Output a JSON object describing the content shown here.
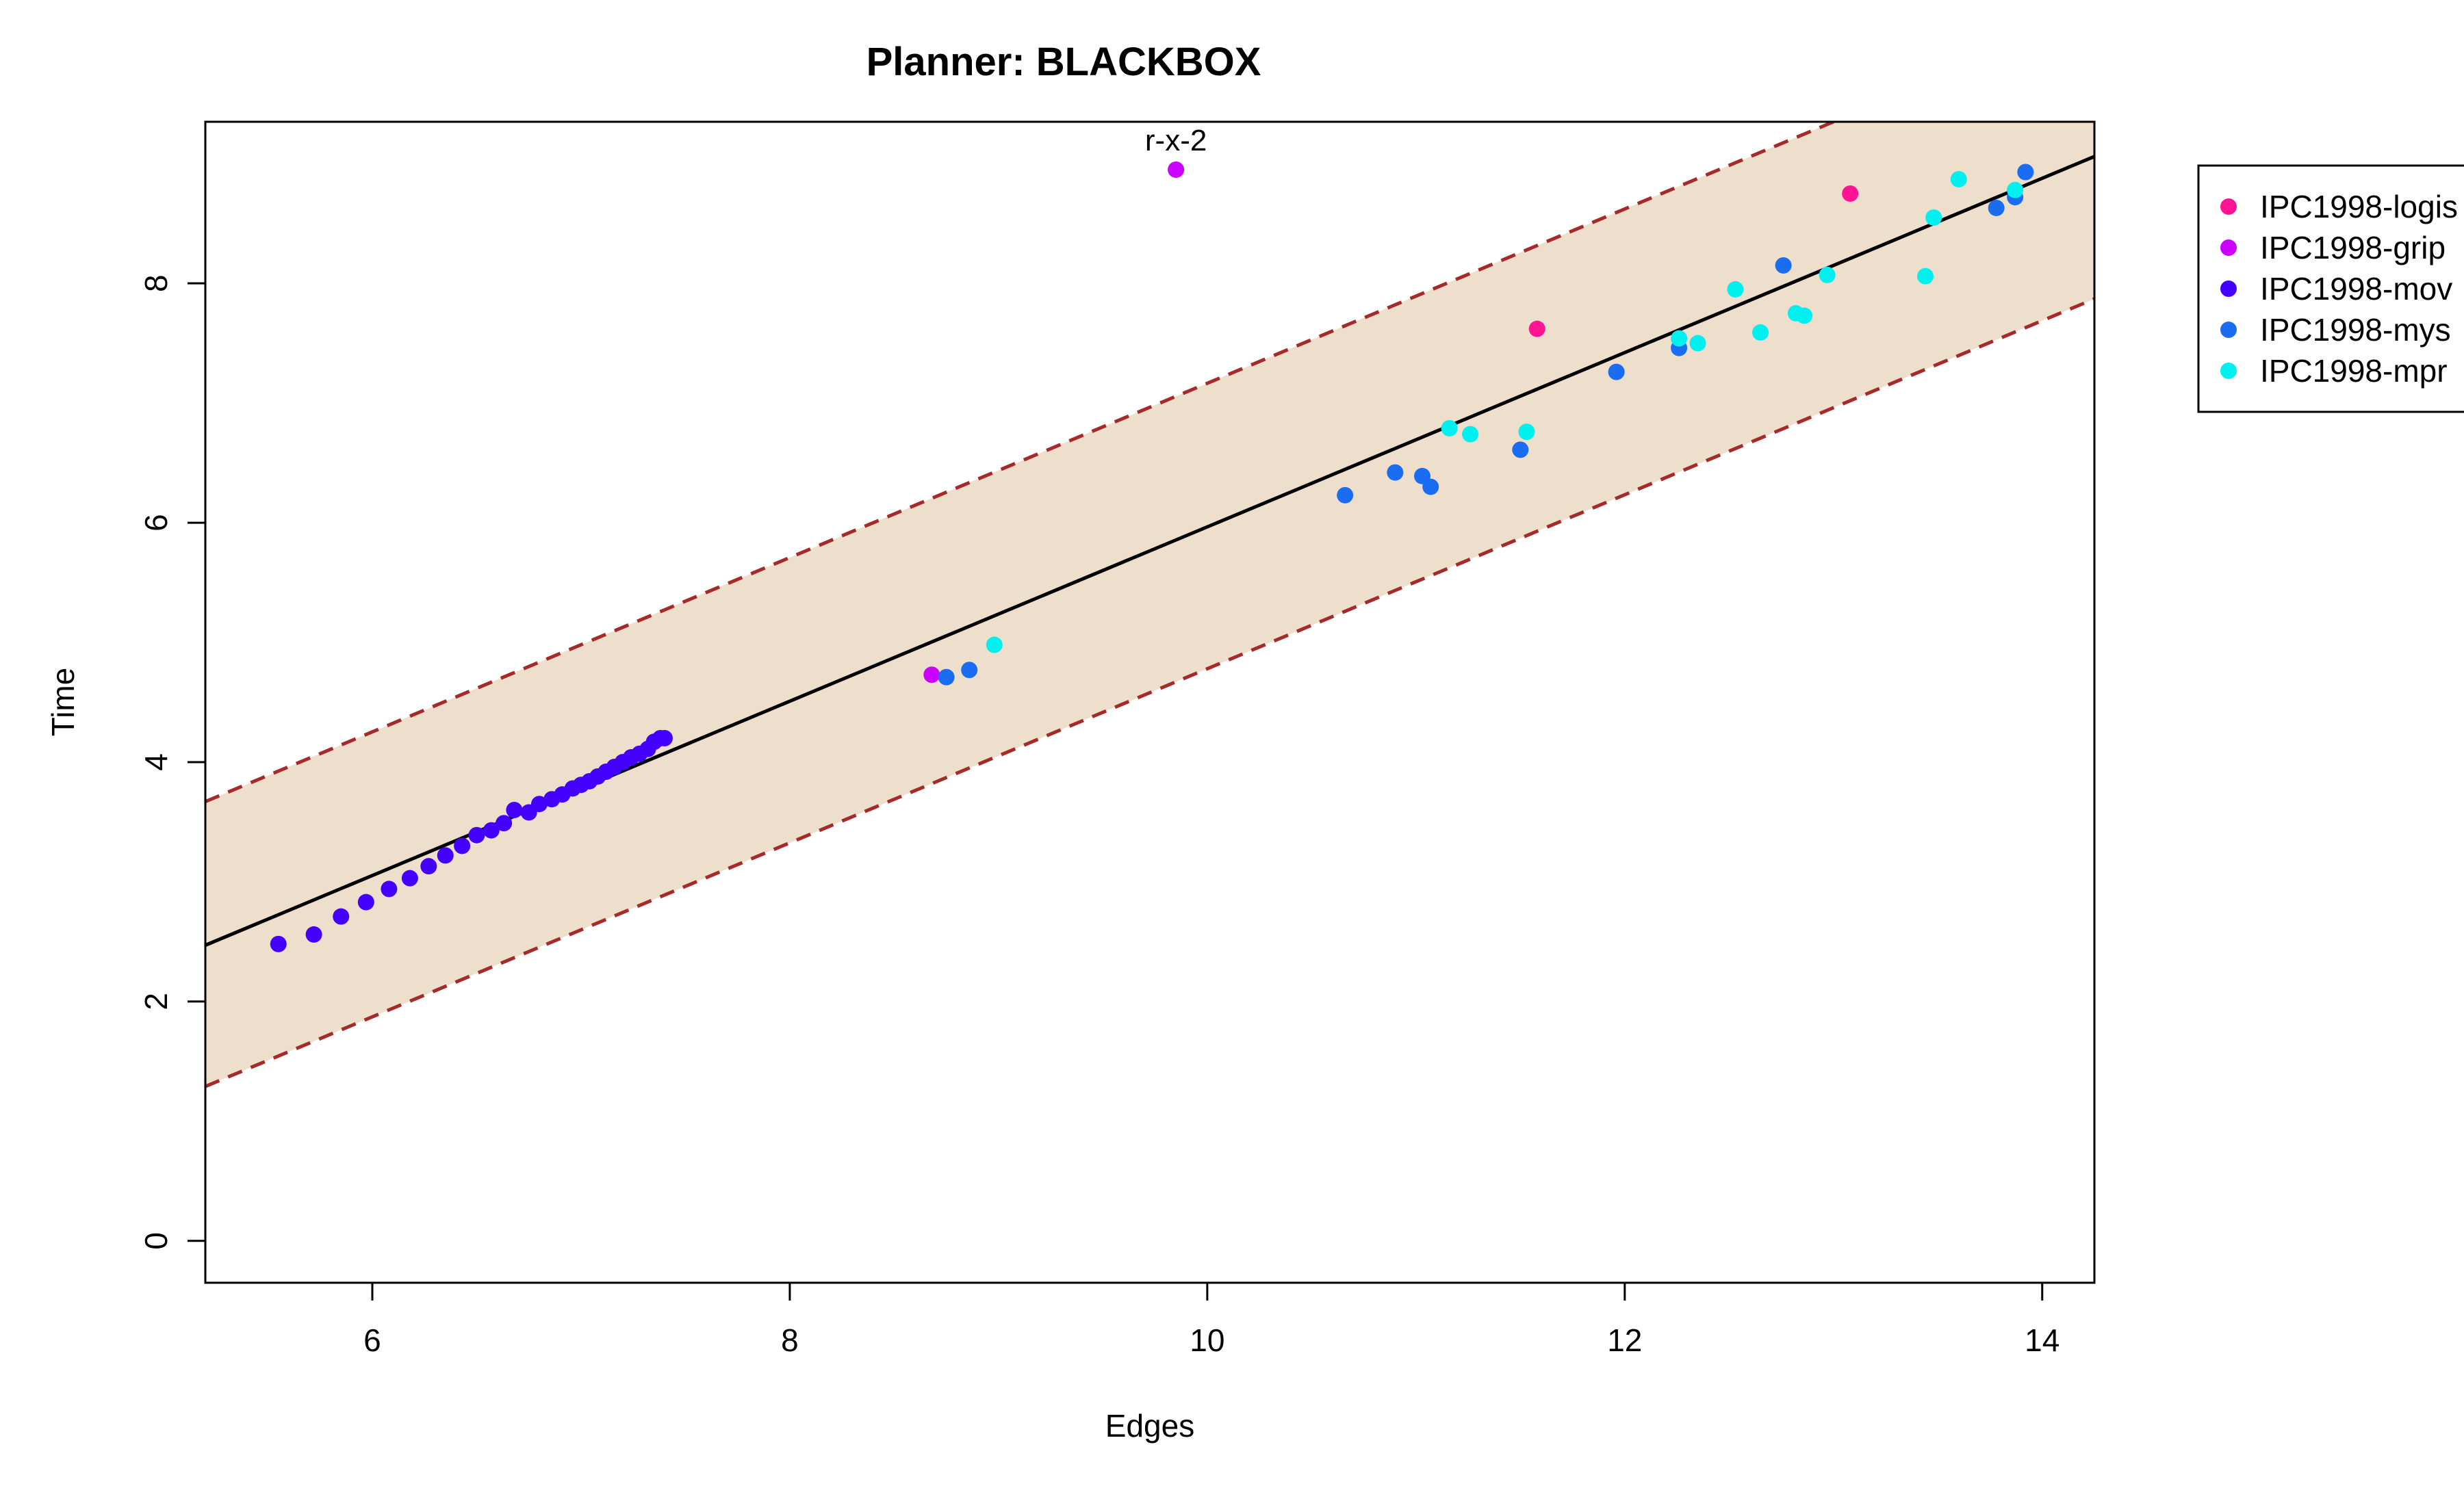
{
  "chart_data": {
    "type": "scatter",
    "title": "Planner: BLACKBOX",
    "xlabel": "Edges",
    "ylabel": "Time",
    "xlim": [
      5.2,
      14.25
    ],
    "ylim": [
      -0.35,
      9.35
    ],
    "x_ticks": [
      6,
      8,
      10,
      12,
      14
    ],
    "y_ticks": [
      0,
      2,
      4,
      6,
      8
    ],
    "grid": false,
    "legend_position": "right, outside plot (clipped)",
    "fit_line": {
      "x": [
        5.2,
        14.25
      ],
      "y": [
        2.47,
        9.06
      ]
    },
    "band_upper": {
      "x": [
        5.2,
        14.25
      ],
      "y": [
        3.67,
        10.26
      ]
    },
    "band_lower": {
      "x": [
        5.2,
        14.25
      ],
      "y": [
        1.29,
        7.87
      ]
    },
    "band_color": "#eedfcc",
    "band_line_color": "#a52a2a",
    "fit_line_color": "#000000",
    "annotations": [
      {
        "text": "r-x-2",
        "x": 9.85,
        "y": 9.19
      }
    ],
    "series": [
      {
        "name": "IPC1998-logis",
        "color": "#ff1493",
        "points": [
          [
            11.58,
            7.62
          ],
          [
            13.08,
            8.75
          ]
        ]
      },
      {
        "name": "IPC1998-grip",
        "color": "#cc00ff",
        "points": [
          [
            9.85,
            8.95
          ],
          [
            8.68,
            4.73
          ]
        ]
      },
      {
        "name": "IPC1998-mov",
        "color": "#4400ff",
        "points": [
          [
            5.55,
            2.48
          ],
          [
            5.72,
            2.56
          ],
          [
            5.85,
            2.71
          ],
          [
            5.97,
            2.83
          ],
          [
            6.08,
            2.94
          ],
          [
            6.18,
            3.03
          ],
          [
            6.27,
            3.13
          ],
          [
            6.35,
            3.22
          ],
          [
            6.43,
            3.3
          ],
          [
            6.5,
            3.39
          ],
          [
            6.57,
            3.43
          ],
          [
            6.63,
            3.49
          ],
          [
            6.68,
            3.6
          ],
          [
            6.75,
            3.58
          ],
          [
            6.8,
            3.65
          ],
          [
            6.86,
            3.69
          ],
          [
            6.91,
            3.73
          ],
          [
            6.96,
            3.78
          ],
          [
            7.0,
            3.81
          ],
          [
            7.04,
            3.84
          ],
          [
            7.08,
            3.88
          ],
          [
            7.12,
            3.92
          ],
          [
            7.16,
            3.96
          ],
          [
            7.2,
            4.0
          ],
          [
            7.24,
            4.04
          ],
          [
            7.28,
            4.07
          ],
          [
            7.32,
            4.11
          ],
          [
            7.35,
            4.17
          ],
          [
            7.38,
            4.2
          ],
          [
            7.4,
            4.2
          ]
        ]
      },
      {
        "name": "IPC1998-mys",
        "color": "#1a6cf0",
        "points": [
          [
            8.75,
            4.71
          ],
          [
            8.86,
            4.77
          ],
          [
            10.66,
            6.23
          ],
          [
            10.9,
            6.42
          ],
          [
            11.03,
            6.39
          ],
          [
            11.07,
            6.3
          ],
          [
            11.5,
            6.61
          ],
          [
            11.96,
            7.26
          ],
          [
            12.26,
            7.46
          ],
          [
            12.76,
            8.15
          ],
          [
            13.78,
            8.63
          ],
          [
            13.87,
            8.72
          ],
          [
            13.92,
            8.93
          ]
        ]
      },
      {
        "name": "IPC1998-mpr",
        "color": "#00f0f0",
        "points": [
          [
            8.98,
            4.98
          ],
          [
            11.16,
            6.79
          ],
          [
            11.26,
            6.74
          ],
          [
            11.53,
            6.76
          ],
          [
            12.26,
            7.54
          ],
          [
            12.35,
            7.5
          ],
          [
            12.53,
            7.95
          ],
          [
            12.65,
            7.59
          ],
          [
            12.82,
            7.75
          ],
          [
            12.86,
            7.73
          ],
          [
            12.97,
            8.07
          ],
          [
            13.44,
            8.06
          ],
          [
            13.48,
            8.55
          ],
          [
            13.6,
            8.87
          ],
          [
            13.87,
            8.78
          ]
        ]
      }
    ]
  }
}
